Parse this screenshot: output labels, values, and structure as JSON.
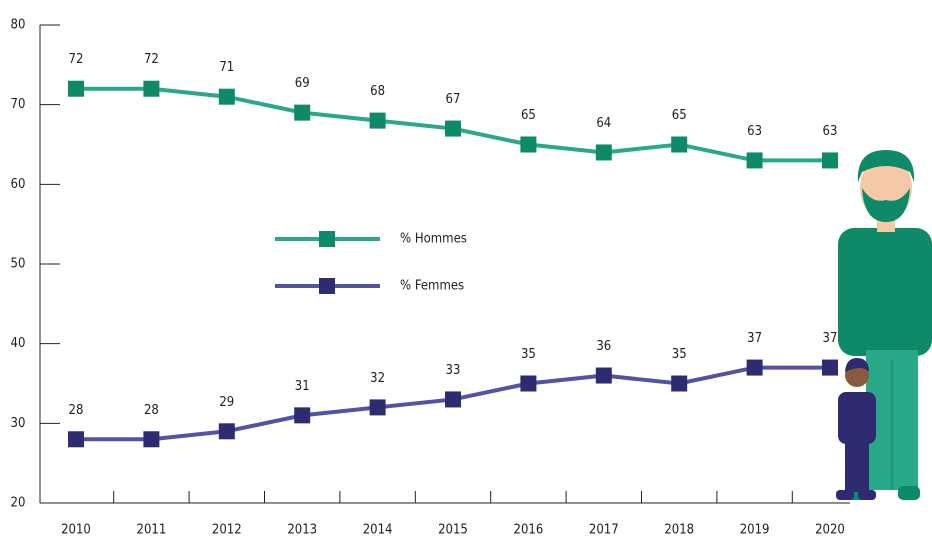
{
  "chart_data": {
    "type": "line",
    "categories": [
      "2010",
      "2011",
      "2012",
      "2013",
      "2014",
      "2015",
      "2016",
      "2017",
      "2018",
      "2019",
      "2020"
    ],
    "series": [
      {
        "name": "% Hommes",
        "color": "#2aa98a",
        "marker_color": "#0e8a68",
        "values": [
          72,
          72,
          71,
          69,
          68,
          67,
          65,
          64,
          65,
          63,
          63
        ]
      },
      {
        "name": "% Femmes",
        "color": "#5552a6",
        "marker_color": "#2f2b70",
        "values": [
          28,
          28,
          29,
          31,
          32,
          33,
          35,
          36,
          35,
          37,
          37
        ]
      }
    ],
    "ylim": [
      20,
      80
    ],
    "yticks": [
      20,
      30,
      40,
      50,
      60,
      70,
      80
    ]
  }
}
